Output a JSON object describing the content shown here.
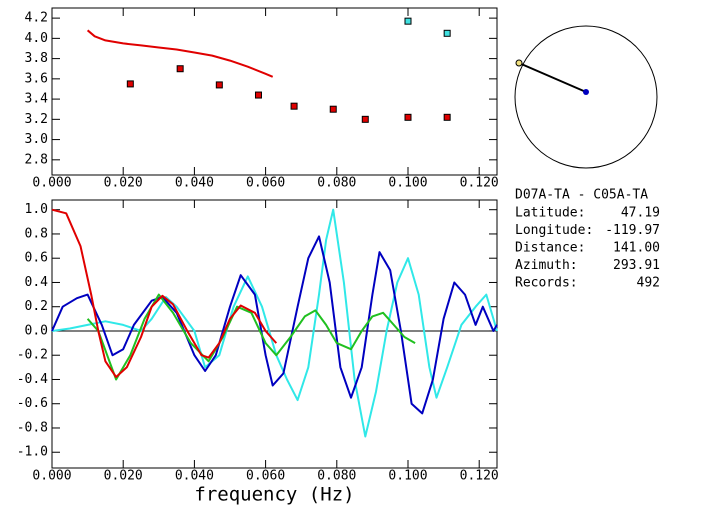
{
  "chart_data": [
    {
      "type": "scatter",
      "xlim": [
        0,
        0.125
      ],
      "ylim": [
        2.65,
        4.3
      ],
      "xticks": [
        {
          "value": 0,
          "label": "0.000"
        },
        {
          "value": 0.02,
          "label": "0.020"
        },
        {
          "value": 0.04,
          "label": "0.040"
        },
        {
          "value": 0.06,
          "label": "0.060"
        },
        {
          "value": 0.08,
          "label": "0.080"
        },
        {
          "value": 0.1,
          "label": "0.100"
        },
        {
          "value": 0.12,
          "label": "0.120"
        }
      ],
      "yticks": [
        {
          "value": 2.8,
          "label": "2.8"
        },
        {
          "value": 3.0,
          "label": "3.0"
        },
        3.2,
        3.4,
        3.6,
        3.8,
        {
          "value": 4.0,
          "label": "4.0"
        },
        4.2
      ],
      "series": [
        {
          "style": "line",
          "color": "#e00000",
          "x": [
            0.01,
            0.012,
            0.015,
            0.02,
            0.025,
            0.03,
            0.035,
            0.04,
            0.045,
            0.05,
            0.055,
            0.06,
            0.062
          ],
          "values": [
            4.08,
            4.02,
            3.98,
            3.95,
            3.93,
            3.91,
            3.89,
            3.86,
            3.83,
            3.78,
            3.72,
            3.65,
            3.62
          ]
        },
        {
          "style": "markers",
          "color": "#e00000",
          "x": [
            0.022,
            0.036,
            0.047,
            0.058,
            0.068,
            0.079,
            0.088,
            0.1,
            0.111
          ],
          "values": [
            3.55,
            3.7,
            3.54,
            3.44,
            3.33,
            3.3,
            3.2,
            3.22,
            3.22
          ]
        },
        {
          "style": "markers",
          "color": "#40e0e0",
          "x": [
            0.1,
            0.111
          ],
          "values": [
            4.17,
            4.05
          ]
        }
      ]
    },
    {
      "type": "line",
      "xlabel": "frequency (Hz)",
      "xlim": [
        0,
        0.125
      ],
      "ylim": [
        -1.13,
        1.08
      ],
      "xticks": [
        {
          "value": 0,
          "label": "0.000"
        },
        {
          "value": 0.02,
          "label": "0.020"
        },
        {
          "value": 0.04,
          "label": "0.040"
        },
        {
          "value": 0.06,
          "label": "0.060"
        },
        {
          "value": 0.08,
          "label": "0.080"
        },
        {
          "value": 0.1,
          "label": "0.100"
        },
        {
          "value": 0.12,
          "label": "0.120"
        }
      ],
      "yticks": [
        {
          "value": -1.0,
          "label": "-1.0"
        },
        -0.8,
        -0.6,
        -0.4,
        -0.2,
        {
          "value": 0,
          "label": "0.0"
        },
        0.2,
        0.4,
        0.6,
        0.8,
        {
          "value": 1.0,
          "label": "1.0"
        }
      ],
      "zero_line": true,
      "series": [
        {
          "color": "#30e8e8",
          "x": [
            0,
            0.005,
            0.01,
            0.015,
            0.02,
            0.025,
            0.028,
            0.032,
            0.035,
            0.04,
            0.043,
            0.047,
            0.051,
            0.055,
            0.059,
            0.063,
            0.066,
            0.069,
            0.072,
            0.075,
            0.077,
            0.079,
            0.082,
            0.085,
            0.088,
            0.091,
            0.094,
            0.097,
            0.1,
            0.103,
            0.106,
            0.108,
            0.111,
            0.115,
            0.119,
            0.122,
            0.125
          ],
          "values": [
            0.0,
            0.02,
            0.05,
            0.08,
            0.05,
            0.0,
            0.1,
            0.28,
            0.2,
            0.0,
            -0.3,
            -0.2,
            0.2,
            0.45,
            0.2,
            -0.2,
            -0.4,
            -0.57,
            -0.3,
            0.3,
            0.75,
            1.0,
            0.4,
            -0.4,
            -0.87,
            -0.5,
            0.0,
            0.4,
            0.6,
            0.3,
            -0.3,
            -0.55,
            -0.3,
            0.05,
            0.2,
            0.3,
            0.0
          ]
        },
        {
          "color": "#0000c0",
          "x": [
            0,
            0.003,
            0.007,
            0.01,
            0.014,
            0.017,
            0.02,
            0.023,
            0.028,
            0.031,
            0.035,
            0.04,
            0.043,
            0.046,
            0.05,
            0.053,
            0.057,
            0.06,
            0.062,
            0.065,
            0.069,
            0.072,
            0.075,
            0.078,
            0.081,
            0.084,
            0.087,
            0.09,
            0.092,
            0.095,
            0.098,
            0.101,
            0.104,
            0.107,
            0.11,
            0.113,
            0.116,
            0.119,
            0.121,
            0.124,
            0.125
          ],
          "values": [
            0.0,
            0.2,
            0.27,
            0.3,
            0.05,
            -0.2,
            -0.15,
            0.05,
            0.25,
            0.28,
            0.15,
            -0.2,
            -0.33,
            -0.2,
            0.2,
            0.46,
            0.3,
            -0.2,
            -0.45,
            -0.35,
            0.2,
            0.6,
            0.78,
            0.4,
            -0.3,
            -0.55,
            -0.3,
            0.3,
            0.65,
            0.5,
            0.0,
            -0.6,
            -0.68,
            -0.4,
            0.1,
            0.4,
            0.3,
            0.05,
            0.2,
            0.0,
            0.05
          ]
        },
        {
          "color": "#20c020",
          "x": [
            0.01,
            0.013,
            0.018,
            0.022,
            0.026,
            0.03,
            0.034,
            0.039,
            0.044,
            0.048,
            0.052,
            0.056,
            0.06,
            0.063,
            0.067,
            0.071,
            0.074,
            0.077,
            0.08,
            0.084,
            0.087,
            0.09,
            0.093,
            0.096,
            0.099,
            0.102
          ],
          "values": [
            0.1,
            0.0,
            -0.4,
            -0.2,
            0.1,
            0.3,
            0.15,
            -0.1,
            -0.25,
            -0.05,
            0.2,
            0.15,
            -0.1,
            -0.2,
            -0.05,
            0.12,
            0.17,
            0.05,
            -0.1,
            -0.15,
            0.0,
            0.12,
            0.15,
            0.05,
            -0.05,
            -0.1
          ]
        },
        {
          "color": "#e00000",
          "x": [
            0,
            0.004,
            0.008,
            0.011,
            0.013,
            0.015,
            0.018,
            0.021,
            0.025,
            0.028,
            0.031,
            0.034,
            0.038,
            0.042,
            0.044,
            0.047,
            0.05,
            0.053,
            0.057,
            0.06,
            0.063
          ],
          "values": [
            1.0,
            0.97,
            0.7,
            0.3,
            0.0,
            -0.25,
            -0.38,
            -0.3,
            -0.05,
            0.2,
            0.29,
            0.22,
            0.0,
            -0.2,
            -0.22,
            -0.1,
            0.1,
            0.21,
            0.15,
            0.0,
            -0.1
          ]
        }
      ]
    }
  ],
  "info": {
    "title": "D07A-TA - C05A-TA",
    "rows": [
      {
        "label": "Latitude:",
        "value": "47.19"
      },
      {
        "label": "Longitude:",
        "value": "-119.97"
      },
      {
        "label": "Distance:",
        "value": "141.00"
      },
      {
        "label": "Azimuth:",
        "value": "293.91"
      },
      {
        "label": "Records:",
        "value": "492"
      }
    ]
  }
}
